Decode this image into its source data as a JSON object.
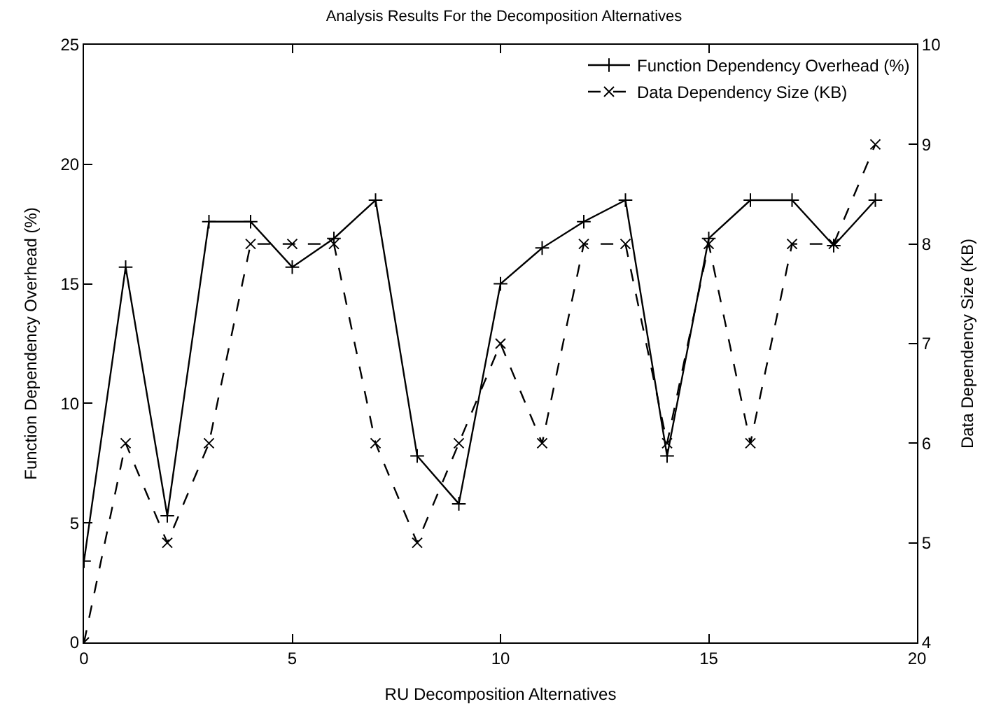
{
  "chart_data": {
    "type": "line",
    "title": "Analysis Results For the Decomposition Alternatives",
    "xlabel": "RU Decomposition Alternatives",
    "ylabel": "Function Dependency Overhead (%)",
    "y2label": "Data Dependency Size (KB)",
    "x": [
      0,
      1,
      2,
      3,
      4,
      5,
      6,
      7,
      8,
      9,
      10,
      11,
      12,
      13,
      14,
      15,
      16,
      17,
      18,
      19
    ],
    "series": [
      {
        "name": "Function Dependency Overhead (%)",
        "color": "#000000",
        "marker": "cross",
        "line_style": "solid",
        "values": [
          3.4,
          15.7,
          5.3,
          17.6,
          17.6,
          15.7,
          16.9,
          18.5,
          7.8,
          5.8,
          15,
          16.5,
          17.6,
          18.5,
          7.8,
          16.9,
          18.5,
          18.5,
          16.6,
          18.5
        ]
      },
      {
        "name": "Data Dependency Size (KB)",
        "color": "#000000",
        "marker": "x",
        "line_style": "dashed",
        "axis": "y2",
        "values": [
          4,
          6,
          5,
          6,
          8,
          8,
          8,
          6,
          5,
          6,
          7,
          6,
          8,
          8,
          6,
          8,
          6,
          8,
          8,
          9
        ]
      }
    ],
    "xlim": [
      0,
      20
    ],
    "xticks": [
      0,
      5,
      10,
      15,
      20
    ],
    "ylim": [
      0,
      25
    ],
    "yticks": [
      0,
      5,
      10,
      15,
      20,
      25
    ],
    "y2lim": [
      4,
      10
    ],
    "y2ticks": [
      4,
      5,
      6,
      7,
      8,
      9,
      10
    ],
    "grid": false,
    "legend": "top right"
  }
}
